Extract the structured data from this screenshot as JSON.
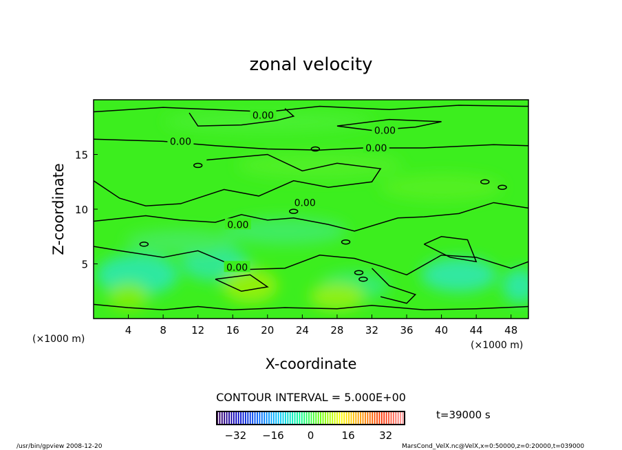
{
  "chart_data": {
    "type": "heatmap",
    "title": "zonal velocity",
    "xlabel": "X-coordinate",
    "ylabel": "Z-coordinate",
    "x_unit_left": "(×1000 m)",
    "x_unit_right": "(×1000 m)",
    "xlim": [
      0,
      50
    ],
    "ylim": [
      0,
      20
    ],
    "xticks": [
      4,
      8,
      12,
      16,
      20,
      24,
      28,
      32,
      36,
      40,
      44,
      48
    ],
    "yticks": [
      5,
      10,
      15
    ],
    "contour_interval_label": "CONTOUR INTERVAL = 5.000E+00",
    "contour_labels": [
      {
        "text": "0.00",
        "x": 19.5,
        "z": 18.6
      },
      {
        "text": "0.00",
        "x": 33.5,
        "z": 17.2
      },
      {
        "text": "0.00",
        "x": 10,
        "z": 16.2
      },
      {
        "text": "0.00",
        "x": 32.5,
        "z": 15.6
      },
      {
        "text": "0.00",
        "x": 24.3,
        "z": 10.6
      },
      {
        "text": "0.00",
        "x": 16.6,
        "z": 8.6
      },
      {
        "text": "0.00",
        "x": 16.5,
        "z": 4.7
      }
    ],
    "colorbar": {
      "range": [
        -40,
        40
      ],
      "ticks": [
        -32,
        -16,
        0,
        16,
        32
      ],
      "colors": [
        "#3c0064",
        "#0000c8",
        "#0064ff",
        "#00c8ff",
        "#00ff96",
        "#64ff00",
        "#ffff00",
        "#ff9600",
        "#ff3200",
        "#ff9696"
      ]
    },
    "time_label": "t=39000 s"
  },
  "footer": {
    "left": "/usr/bin/gpview   2008-12-20",
    "right": "MarsCond_VelX.nc@VelX,x=0:50000,z=0:20000,t=039000"
  }
}
